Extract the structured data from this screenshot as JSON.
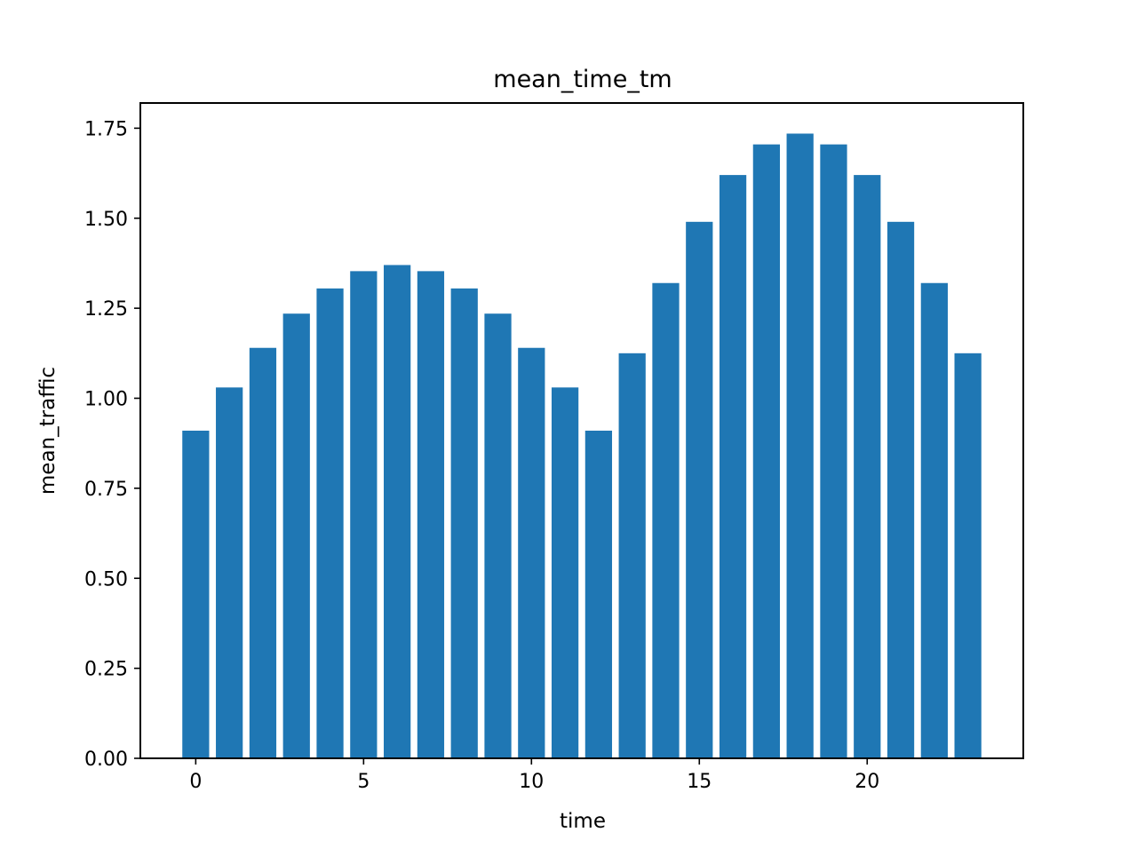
{
  "chart_data": {
    "type": "bar",
    "title": "mean_time_tm",
    "xlabel": "time",
    "ylabel": "mean_traffic",
    "categories": [
      0,
      1,
      2,
      3,
      4,
      5,
      6,
      7,
      8,
      9,
      10,
      11,
      12,
      13,
      14,
      15,
      16,
      17,
      18,
      19,
      20,
      21,
      22,
      23
    ],
    "values": [
      0.91,
      1.03,
      1.14,
      1.235,
      1.305,
      1.353,
      1.37,
      1.353,
      1.305,
      1.235,
      1.14,
      1.03,
      0.91,
      1.125,
      1.32,
      1.49,
      1.62,
      1.705,
      1.735,
      1.705,
      1.62,
      1.49,
      1.32,
      1.125
    ],
    "xlim": [
      -1.65,
      24.65
    ],
    "ylim": [
      0,
      1.82
    ],
    "x_ticks": [
      0,
      5,
      10,
      15,
      20
    ],
    "x_tick_labels": [
      "0",
      "5",
      "10",
      "15",
      "20"
    ],
    "y_ticks": [
      0,
      0.25,
      0.5,
      0.75,
      1.0,
      1.25,
      1.5,
      1.75
    ],
    "y_tick_labels": [
      "0.00",
      "0.25",
      "0.50",
      "0.75",
      "1.00",
      "1.25",
      "1.50",
      "1.75"
    ],
    "bar_color": "#1f77b4",
    "grid": false,
    "legend": "none"
  }
}
